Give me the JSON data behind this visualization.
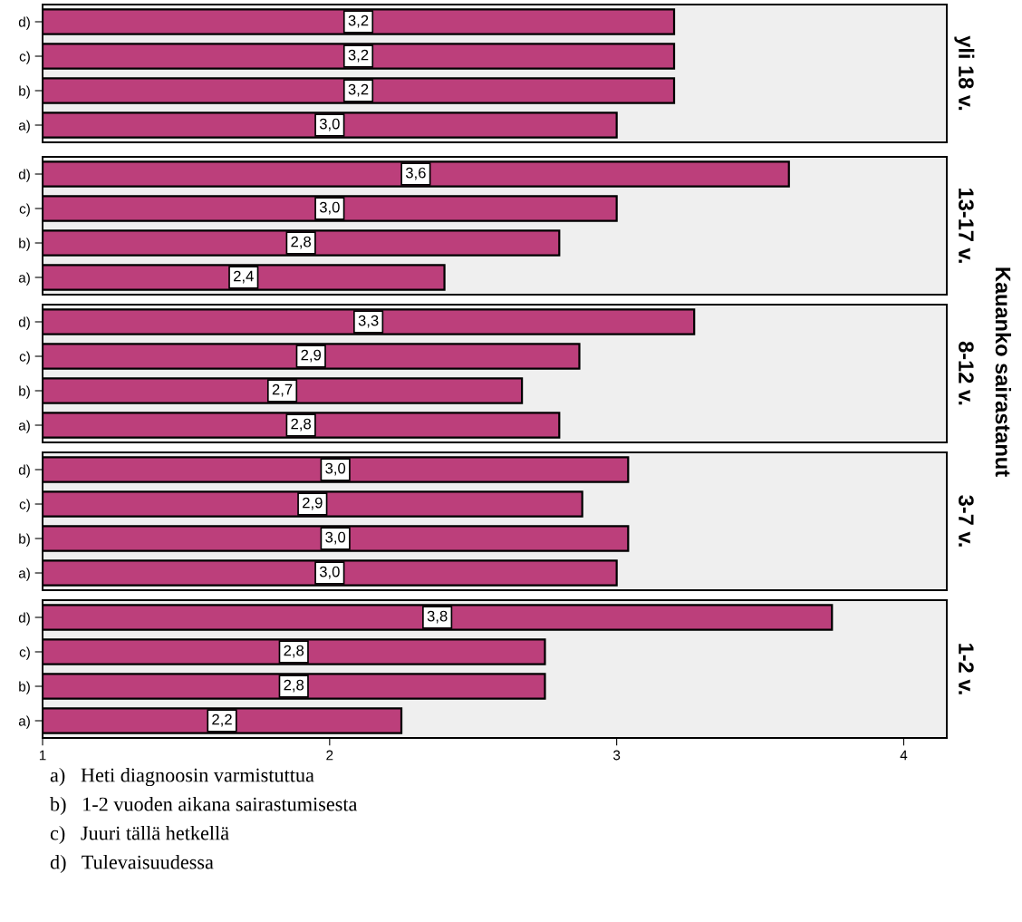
{
  "chart_data": [
    {
      "type": "bar",
      "orientation": "horizontal",
      "y2label": "yli 18 v.",
      "categories": [
        "d)",
        "c)",
        "b)",
        "a)"
      ],
      "values": [
        3.2,
        3.2,
        3.2,
        3.0
      ],
      "value_labels": [
        "3,2",
        "3,2",
        "3,2",
        "3,0"
      ],
      "color": "#bc3f7b",
      "xlim": [
        1,
        4.15
      ],
      "xticks": [
        1,
        2,
        3,
        4
      ],
      "tick_labels": "y",
      "grid": false,
      "annotations": [
        "Kauanko sairastanut"
      ]
    },
    {
      "type": "bar",
      "orientation": "horizontal",
      "y2label": "13-17 v.",
      "categories": [
        "d)",
        "c)",
        "b)",
        "a)"
      ],
      "values": [
        3.6,
        3.0,
        2.8,
        2.4
      ],
      "value_labels": [
        "3,6",
        "3,0",
        "2,8",
        "2,4"
      ],
      "color": "#bc3f7b",
      "xlim": [
        1,
        4.15
      ],
      "xticks": [
        1,
        2,
        3,
        4
      ],
      "tick_labels": "y",
      "grid": false
    },
    {
      "type": "bar",
      "orientation": "horizontal",
      "y2label": "8-12 v.",
      "categories": [
        "d)",
        "c)",
        "b)",
        "a)"
      ],
      "values": [
        3.27,
        2.87,
        2.67,
        2.8
      ],
      "value_labels": [
        "3,3",
        "2,9",
        "2,7",
        "2,8"
      ],
      "color": "#bc3f7b",
      "xlim": [
        1,
        4.15
      ],
      "xticks": [
        1,
        2,
        3,
        4
      ],
      "tick_labels": "y",
      "grid": false
    },
    {
      "type": "bar",
      "orientation": "horizontal",
      "y2label": "3-7 v.",
      "categories": [
        "d)",
        "c)",
        "b)",
        "a)"
      ],
      "values": [
        3.04,
        2.88,
        3.04,
        3.0
      ],
      "value_labels": [
        "3,0",
        "2,9",
        "3,0",
        "3,0"
      ],
      "color": "#bc3f7b",
      "xlim": [
        1,
        4.15
      ],
      "xticks": [
        1,
        2,
        3,
        4
      ],
      "tick_labels": "y",
      "grid": false
    },
    {
      "type": "bar",
      "orientation": "horizontal",
      "y2label": "1-2 v.",
      "categories": [
        "d)",
        "c)",
        "b)",
        "a)"
      ],
      "values": [
        3.75,
        2.75,
        2.75,
        2.25
      ],
      "value_labels": [
        "3,8",
        "2,8",
        "2,8",
        "2,2"
      ],
      "color": "#bc3f7b",
      "xlim": [
        1,
        4.15
      ],
      "xticks": [
        1,
        2,
        3,
        4
      ],
      "grid": false,
      "annotations": [
        "a)   Heti diagnoosin varmistuttua",
        "b)   1-2 vuoden aikana sairastumisesta",
        "c)   Juuri tällä hetkellä",
        "d)   Tulevaisuudessa"
      ]
    }
  ]
}
